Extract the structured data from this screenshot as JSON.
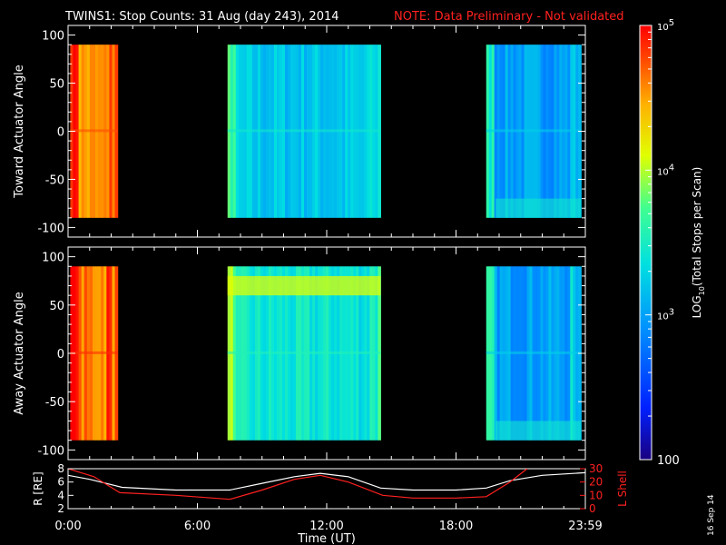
{
  "title": "TWINS1: Stop Counts: 31 Aug (day 243), 2014",
  "note": "NOTE: Data Preliminary - Not validated",
  "date_stamp": "16 Sep 14",
  "colors": {
    "background": "#000000",
    "axes": "#ffffff",
    "note": "#ff2020",
    "r_line": "#ffffff",
    "l_shell_line": "#ff2020"
  },
  "chart_data": [
    {
      "type": "heatmap",
      "title": "",
      "ylabel": "Toward Actuator Angle",
      "ylim": [
        -110,
        110
      ],
      "yticks": [
        -100,
        -50,
        0,
        50,
        100
      ],
      "xlim": [
        0,
        24
      ],
      "value_scale": "log",
      "data_y_range": [
        -90,
        90
      ],
      "segments": [
        {
          "t_start": 0.1,
          "t_end": 2.3,
          "level": 4.5
        },
        {
          "t_start": 7.4,
          "t_end": 14.5,
          "level": 3.2
        },
        {
          "t_start": 19.4,
          "t_end": 23.8,
          "level": 3.0
        }
      ]
    },
    {
      "type": "heatmap",
      "title": "",
      "ylabel": "Away Actuator Angle",
      "ylim": [
        -110,
        110
      ],
      "yticks": [
        -100,
        -50,
        0,
        50,
        100
      ],
      "xlim": [
        0,
        24
      ],
      "value_scale": "log",
      "data_y_range": [
        -90,
        90
      ],
      "segments": [
        {
          "t_start": 0.1,
          "t_end": 2.3,
          "level": 4.6
        },
        {
          "t_start": 7.4,
          "t_end": 14.5,
          "level": 3.3
        },
        {
          "t_start": 19.4,
          "t_end": 23.8,
          "level": 3.0
        }
      ]
    },
    {
      "type": "line",
      "ylabel": "R [RE]",
      "ylabel_right": "L Shell",
      "xlabel": "Time (UT)",
      "xlim": [
        0,
        24
      ],
      "ylim": [
        2,
        8
      ],
      "yticks": [
        2,
        4,
        6,
        8
      ],
      "ylim_right": [
        0,
        30
      ],
      "yticks_right": [
        0,
        10,
        20,
        30
      ],
      "xtick_positions": [
        0,
        6,
        12,
        18,
        24
      ],
      "xtick_labels": [
        "0:00",
        "6:00",
        "12:00",
        "18:00",
        "23:59"
      ],
      "series": [
        {
          "name": "R [RE]",
          "x": [
            0,
            1,
            2.5,
            5,
            7.5,
            9,
            10.5,
            11.7,
            13,
            14.5,
            16,
            18,
            19.4,
            20.5,
            22,
            23.98
          ],
          "y": [
            7.0,
            6.4,
            5.2,
            4.8,
            4.8,
            5.8,
            6.8,
            7.3,
            6.8,
            5.1,
            4.8,
            4.8,
            5.1,
            6.2,
            7.0,
            7.4
          ]
        },
        {
          "name": "L Shell",
          "x": [
            0,
            1.2,
            2.4,
            5,
            7.5,
            9,
            10.5,
            11.7,
            13,
            14.6,
            16,
            18,
            19.4,
            20.5,
            21.3
          ],
          "y": [
            30,
            24,
            12,
            10,
            7,
            14,
            22,
            25,
            20,
            10,
            8,
            8,
            9,
            20,
            30
          ]
        }
      ]
    }
  ],
  "colorbar": {
    "label_prefix": "LOG",
    "label_sub": "10",
    "label_suffix": "(Total Stops per Scan)",
    "scale_min_exp": 2,
    "scale_max_exp": 5,
    "ticks": [
      {
        "value": 100,
        "base": "100",
        "exp": ""
      },
      {
        "value": 1000,
        "base": "10",
        "exp": "3"
      },
      {
        "value": 10000,
        "base": "10",
        "exp": "4"
      },
      {
        "value": 100000,
        "base": "10",
        "exp": "5"
      }
    ]
  }
}
